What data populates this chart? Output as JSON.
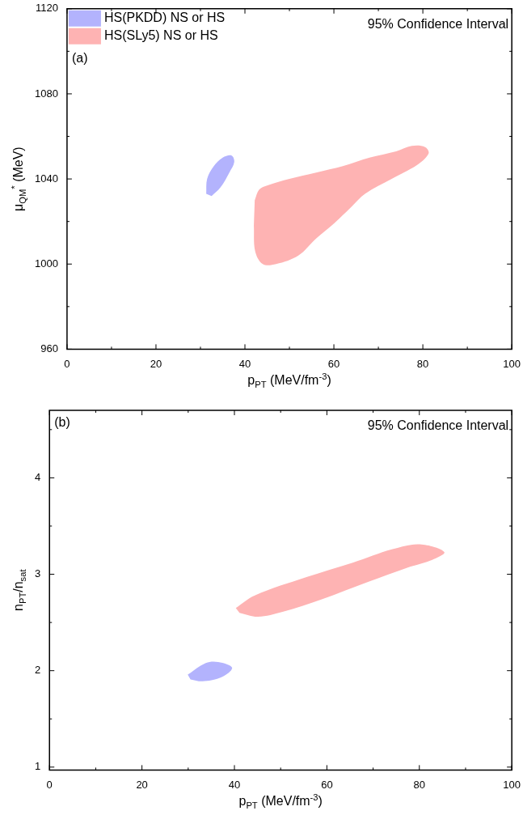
{
  "chart_data": [
    {
      "type": "area",
      "xlabel": "p$_{PT}$ (MeV/fm$^{-3}$)",
      "ylabel": "μ$_{QM}$$^{*}$ (MeV)",
      "legend": "top left",
      "annotations": [
        "(a)",
        "95% Confidence Interval"
      ],
      "xlim": [
        0,
        100
      ],
      "ylim": [
        960,
        1120
      ],
      "xticks": [
        0,
        {
          "value": 10,
          "label": null
        },
        20,
        {
          "value": 30,
          "label": null
        },
        40,
        {
          "value": 50,
          "label": null
        },
        60,
        {
          "value": 70,
          "label": null
        },
        80,
        {
          "value": 90,
          "label": null
        },
        100
      ],
      "yticks": [
        960,
        {
          "value": 980,
          "label": null
        },
        1000,
        {
          "value": 1020,
          "label": null
        },
        1040,
        {
          "value": 1060,
          "label": null
        },
        1080,
        {
          "value": 1100,
          "label": null
        },
        1120
      ],
      "series": [
        {
          "name": "HS(PKDD) NS or HS",
          "color": "#b3b3fd",
          "x": [
            31.3,
            31.5,
            33,
            35,
            37,
            37.6,
            36.5,
            34.5,
            32.5
          ],
          "values": [
            1033,
            1040,
            1046,
            1050,
            1051,
            1048,
            1043,
            1036,
            1032
          ]
        },
        {
          "name": "HS(SLy5) NS or HS",
          "color": "#feb3b3",
          "x": [
            42.2,
            43.2,
            45.1,
            50,
            56,
            62,
            68,
            74,
            77.5,
            80.5,
            81.3,
            79,
            73,
            67,
            64,
            60,
            56,
            52,
            47,
            44,
            42.3,
            42
          ],
          "values": [
            1030,
            1035,
            1037,
            1040,
            1043,
            1046,
            1050,
            1053,
            1055.5,
            1055,
            1052,
            1047,
            1040,
            1033,
            1027,
            1019,
            1012,
            1004,
            1000,
            1000,
            1006,
            1018
          ]
        }
      ]
    },
    {
      "type": "area",
      "xlabel": "p$_{PT}$ (MeV/fm$^{-3}$)",
      "ylabel": "n$_{PT}$/n$_{sat}$",
      "annotations": [
        "(b)",
        "95% Confidence Interval"
      ],
      "xlim": [
        0,
        100
      ],
      "ylim": [
        0.97,
        4.7
      ],
      "xticks": [
        0,
        {
          "value": 10,
          "label": null
        },
        20,
        {
          "value": 30,
          "label": null
        },
        40,
        {
          "value": 50,
          "label": null
        },
        60,
        {
          "value": 70,
          "label": null
        },
        80,
        {
          "value": 90,
          "label": null
        },
        100
      ],
      "yticks": [
        1,
        {
          "value": 1.5,
          "label": null
        },
        2,
        {
          "value": 2.5,
          "label": null
        },
        3,
        {
          "value": 3.5,
          "label": null
        },
        4,
        {
          "value": 4.5,
          "label": null
        }
      ],
      "series": [
        {
          "color": "#b3b3fd",
          "x": [
            29.9,
            33.8,
            36.5,
            39.5,
            37.1,
            33.1,
            30.5
          ],
          "values": [
            1.96,
            2.08,
            2.09,
            2.03,
            1.93,
            1.89,
            1.91
          ]
        },
        {
          "color": "#feb3b3",
          "x": [
            40.3,
            44.4,
            55.6,
            65.6,
            74.2,
            80.1,
            85.4,
            82.8,
            77.5,
            68.9,
            58.9,
            50.4,
            45.1,
            41.1
          ],
          "values": [
            2.65,
            2.78,
            2.97,
            3.12,
            3.26,
            3.31,
            3.23,
            3.15,
            3.07,
            2.92,
            2.74,
            2.61,
            2.56,
            2.6
          ]
        }
      ]
    }
  ]
}
